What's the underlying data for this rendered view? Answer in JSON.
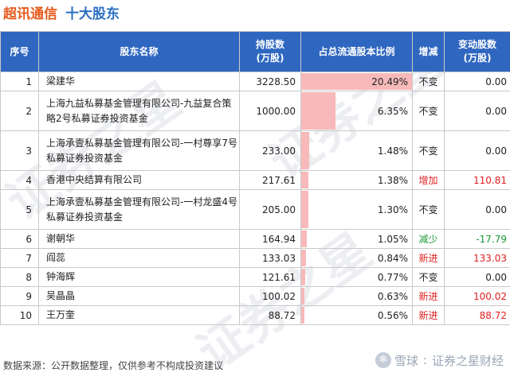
{
  "header": {
    "stock_name": "超讯通信",
    "subtitle": "十大股东"
  },
  "table": {
    "columns": [
      "序号",
      "股东名称",
      "持股数",
      "(万股)",
      "占总流通股本比例",
      "增减",
      "变动股数",
      "(万股)"
    ],
    "rows": [
      {
        "no": "1",
        "name": "梁建华",
        "shares": "3228.50",
        "ratio": "20.49%",
        "ratio_value": 20.49,
        "change": "不变",
        "delta": "0.00"
      },
      {
        "no": "2",
        "name": "上海九益私募基金管理有限公司-九益复合策略2号私募证券投资基金",
        "shares": "1000.00",
        "ratio": "6.35%",
        "ratio_value": 6.35,
        "change": "不变",
        "delta": "0.00"
      },
      {
        "no": "3",
        "name": "上海承壹私募基金管理有限公司-一村尊享7号私募证券投资基金",
        "shares": "233.00",
        "ratio": "1.48%",
        "ratio_value": 1.48,
        "change": "不变",
        "delta": "0.00"
      },
      {
        "no": "4",
        "name": "香港中央结算有限公司",
        "shares": "217.61",
        "ratio": "1.38%",
        "ratio_value": 1.38,
        "change": "增加",
        "delta": "110.81"
      },
      {
        "no": "5",
        "name": "上海承壹私募基金管理有限公司-一村龙盛4号私募证券投资基金",
        "shares": "205.00",
        "ratio": "1.30%",
        "ratio_value": 1.3,
        "change": "不变",
        "delta": "0.00"
      },
      {
        "no": "6",
        "name": "谢朝华",
        "shares": "164.94",
        "ratio": "1.05%",
        "ratio_value": 1.05,
        "change": "减少",
        "delta": "-17.79"
      },
      {
        "no": "7",
        "name": "阎蕊",
        "shares": "133.03",
        "ratio": "0.84%",
        "ratio_value": 0.84,
        "change": "新进",
        "delta": "133.03"
      },
      {
        "no": "8",
        "name": "钟海辉",
        "shares": "121.61",
        "ratio": "0.77%",
        "ratio_value": 0.77,
        "change": "不变",
        "delta": "0.00"
      },
      {
        "no": "9",
        "name": "吴晶晶",
        "shares": "100.02",
        "ratio": "0.63%",
        "ratio_value": 0.63,
        "change": "新进",
        "delta": "100.02"
      },
      {
        "no": "10",
        "name": "王万奎",
        "shares": "88.72",
        "ratio": "0.56%",
        "ratio_value": 0.56,
        "change": "新进",
        "delta": "88.72"
      }
    ]
  },
  "footer": {
    "source": "数据来源：公开数据整理，仅供参考不构成投资建议"
  },
  "brand": {
    "xueqiu": "雪球",
    "name": "证券之星财经",
    "watermark": "证券之星"
  },
  "colors": {
    "header_bg": "#2f67c0",
    "bar": "#f7b9b9",
    "increase": "#e02020",
    "decrease": "#1a9a3a",
    "title_stock": "#e65a1c",
    "title_sub": "#2a6fc2"
  }
}
